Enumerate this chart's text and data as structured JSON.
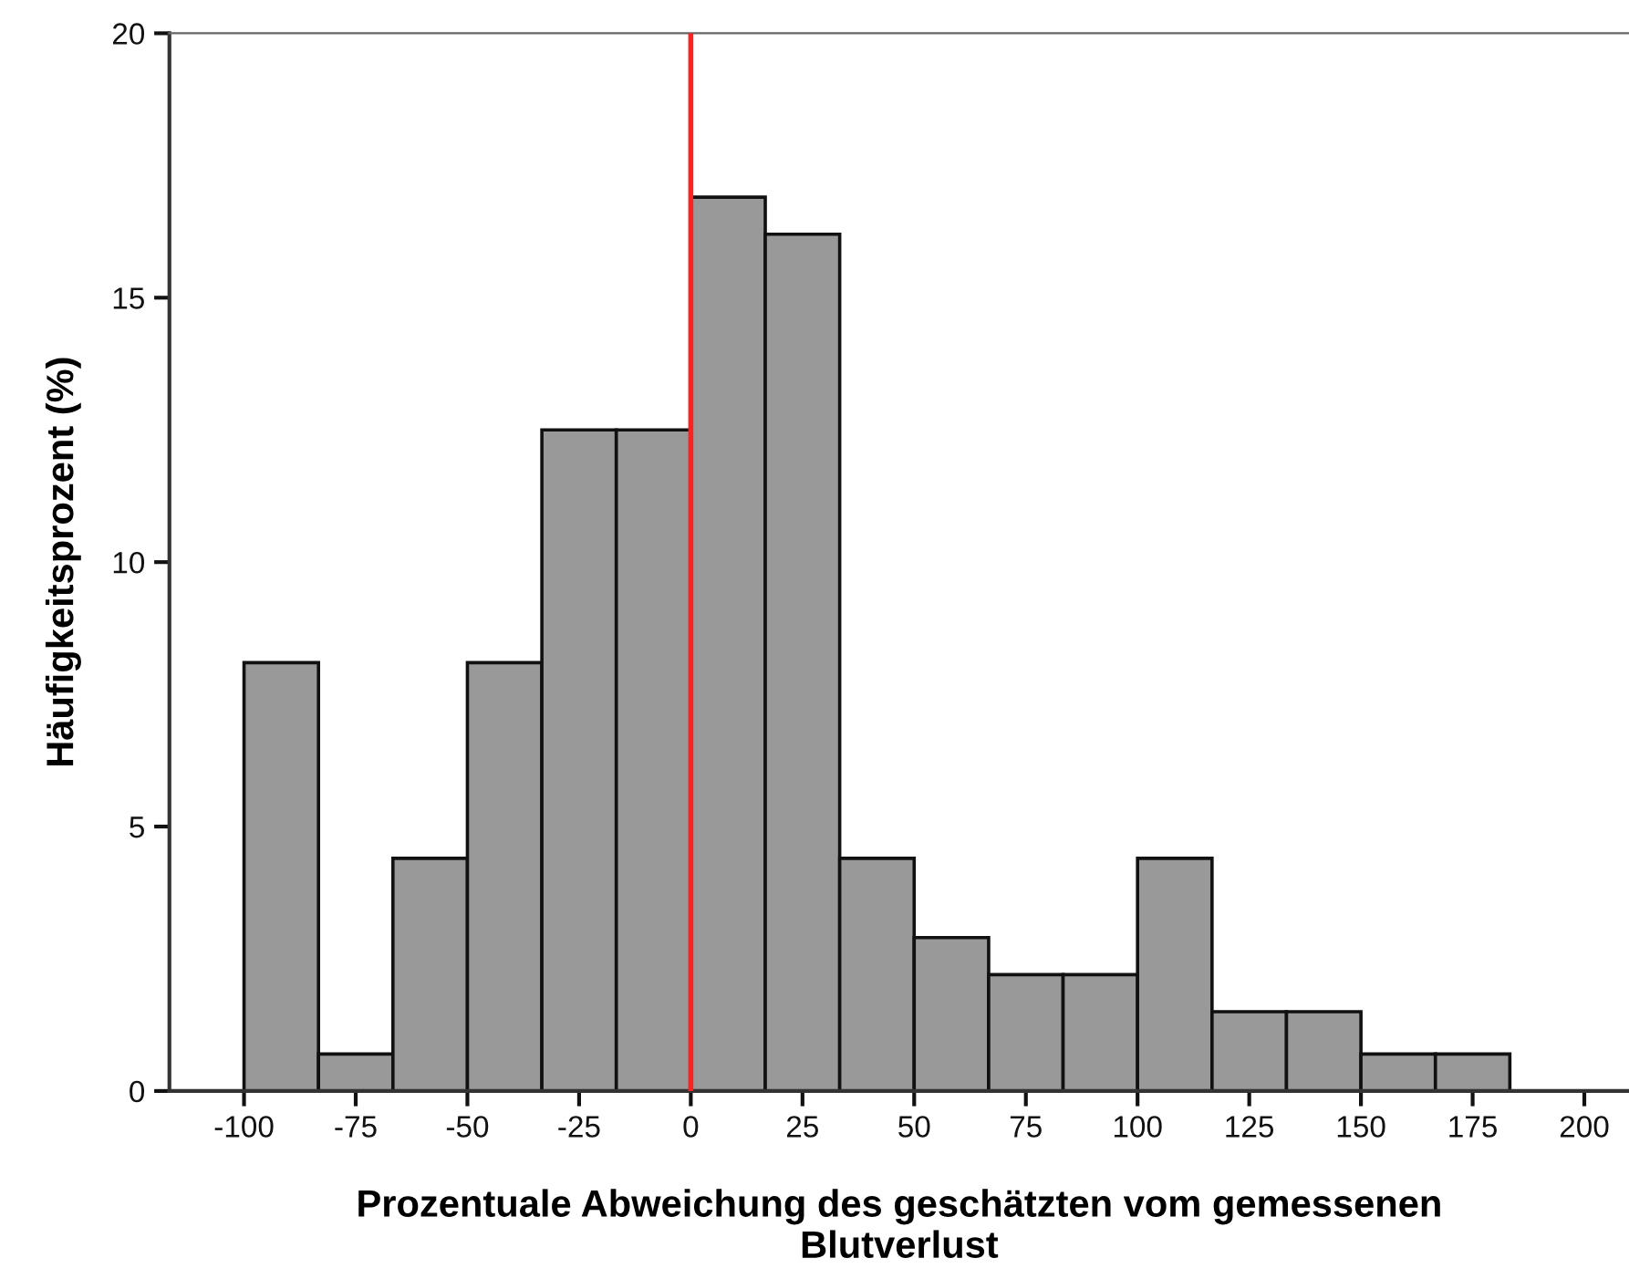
{
  "chart_data": {
    "type": "histogram",
    "xlabel": "Prozentuale Abweichung des geschätzten vom gemessenen\nBlutverlust",
    "ylabel": "Häufigkeitsprozent (%)",
    "bins": [
      -100,
      -83.33,
      -66.67,
      -50,
      -33.33,
      -16.67,
      0,
      16.67,
      33.33,
      50,
      66.67,
      83.33,
      100,
      116.67,
      133.33,
      150,
      166.67,
      183.33
    ],
    "values": [
      8.1,
      0.7,
      4.4,
      8.1,
      12.5,
      12.5,
      16.9,
      16.2,
      4.4,
      2.9,
      2.2,
      2.2,
      4.4,
      1.5,
      1.5,
      0.7,
      0.7
    ],
    "color": "#999999",
    "xlim": [
      -116.7,
      210
    ],
    "ylim": [
      0,
      20
    ],
    "xticks": [
      -100,
      -75,
      -50,
      -25,
      0,
      25,
      50,
      75,
      100,
      125,
      150,
      175,
      200
    ],
    "yticks": [
      0,
      5,
      10,
      15,
      20
    ],
    "grid": false,
    "ref_lines": [
      {
        "axis": "x",
        "value": 0,
        "color": "#ff2020"
      }
    ]
  }
}
